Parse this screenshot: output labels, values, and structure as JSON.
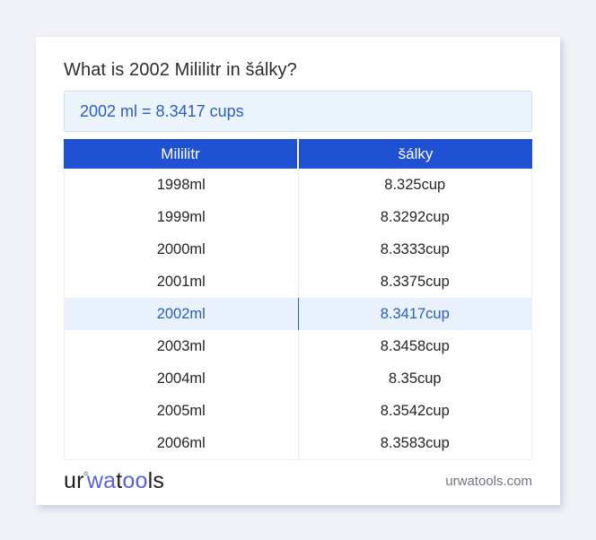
{
  "colors": {
    "page_bg": "#f0f2f8",
    "table_header_bg": "#2051d3",
    "accent_blue": "#2a5fbe",
    "result_bg": "#ebf3fc",
    "result_border": "#cfe0f5",
    "highlight_row_bg": "#e8f1fc",
    "logo_blue": "#5b5fe0"
  },
  "header": {
    "title": "What is 2002 Mililitr in šálky?"
  },
  "result": {
    "text": "2002 ml = 8.3417 cups"
  },
  "table": {
    "columns": [
      "Mililitr",
      "šálky"
    ],
    "rows": [
      {
        "ml": "1998ml",
        "cup": "8.325cup",
        "highlight": false
      },
      {
        "ml": "1999ml",
        "cup": "8.3292cup",
        "highlight": false
      },
      {
        "ml": "2000ml",
        "cup": "8.3333cup",
        "highlight": false
      },
      {
        "ml": "2001ml",
        "cup": "8.3375cup",
        "highlight": false
      },
      {
        "ml": "2002ml",
        "cup": "8.3417cup",
        "highlight": true
      },
      {
        "ml": "2003ml",
        "cup": "8.3458cup",
        "highlight": false
      },
      {
        "ml": "2004ml",
        "cup": "8.35cup",
        "highlight": false
      },
      {
        "ml": "2005ml",
        "cup": "8.3542cup",
        "highlight": false
      },
      {
        "ml": "2006ml",
        "cup": "8.3583cup",
        "highlight": false
      }
    ]
  },
  "footer": {
    "logo": {
      "seg1": "ur",
      "degree": "°",
      "seg2": "wa",
      "seg3": "t",
      "seg4": "oo",
      "seg5": "ls"
    },
    "site": "urwatools.com"
  }
}
